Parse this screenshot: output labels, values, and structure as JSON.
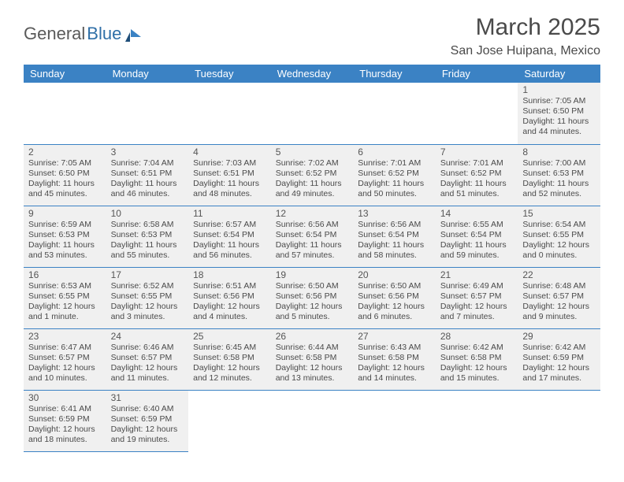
{
  "brand": {
    "name1": "General",
    "name2": "Blue"
  },
  "title": "March 2025",
  "location": "San Jose Huipana, Mexico",
  "colors": {
    "header_bg": "#3b82c4",
    "header_text": "#ffffff",
    "cell_bg": "#f0f0f0",
    "border": "#3b82c4",
    "page_bg": "#ffffff",
    "text": "#4a4a4a",
    "brand_gray": "#5a5a5a",
    "brand_blue": "#2f6fa7"
  },
  "weekdays": [
    "Sunday",
    "Monday",
    "Tuesday",
    "Wednesday",
    "Thursday",
    "Friday",
    "Saturday"
  ],
  "weeks": [
    [
      null,
      null,
      null,
      null,
      null,
      null,
      {
        "n": "1",
        "sr": "Sunrise: 7:05 AM",
        "ss": "Sunset: 6:50 PM",
        "dl": "Daylight: 11 hours and 44 minutes."
      }
    ],
    [
      {
        "n": "2",
        "sr": "Sunrise: 7:05 AM",
        "ss": "Sunset: 6:50 PM",
        "dl": "Daylight: 11 hours and 45 minutes."
      },
      {
        "n": "3",
        "sr": "Sunrise: 7:04 AM",
        "ss": "Sunset: 6:51 PM",
        "dl": "Daylight: 11 hours and 46 minutes."
      },
      {
        "n": "4",
        "sr": "Sunrise: 7:03 AM",
        "ss": "Sunset: 6:51 PM",
        "dl": "Daylight: 11 hours and 48 minutes."
      },
      {
        "n": "5",
        "sr": "Sunrise: 7:02 AM",
        "ss": "Sunset: 6:52 PM",
        "dl": "Daylight: 11 hours and 49 minutes."
      },
      {
        "n": "6",
        "sr": "Sunrise: 7:01 AM",
        "ss": "Sunset: 6:52 PM",
        "dl": "Daylight: 11 hours and 50 minutes."
      },
      {
        "n": "7",
        "sr": "Sunrise: 7:01 AM",
        "ss": "Sunset: 6:52 PM",
        "dl": "Daylight: 11 hours and 51 minutes."
      },
      {
        "n": "8",
        "sr": "Sunrise: 7:00 AM",
        "ss": "Sunset: 6:53 PM",
        "dl": "Daylight: 11 hours and 52 minutes."
      }
    ],
    [
      {
        "n": "9",
        "sr": "Sunrise: 6:59 AM",
        "ss": "Sunset: 6:53 PM",
        "dl": "Daylight: 11 hours and 53 minutes."
      },
      {
        "n": "10",
        "sr": "Sunrise: 6:58 AM",
        "ss": "Sunset: 6:53 PM",
        "dl": "Daylight: 11 hours and 55 minutes."
      },
      {
        "n": "11",
        "sr": "Sunrise: 6:57 AM",
        "ss": "Sunset: 6:54 PM",
        "dl": "Daylight: 11 hours and 56 minutes."
      },
      {
        "n": "12",
        "sr": "Sunrise: 6:56 AM",
        "ss": "Sunset: 6:54 PM",
        "dl": "Daylight: 11 hours and 57 minutes."
      },
      {
        "n": "13",
        "sr": "Sunrise: 6:56 AM",
        "ss": "Sunset: 6:54 PM",
        "dl": "Daylight: 11 hours and 58 minutes."
      },
      {
        "n": "14",
        "sr": "Sunrise: 6:55 AM",
        "ss": "Sunset: 6:54 PM",
        "dl": "Daylight: 11 hours and 59 minutes."
      },
      {
        "n": "15",
        "sr": "Sunrise: 6:54 AM",
        "ss": "Sunset: 6:55 PM",
        "dl": "Daylight: 12 hours and 0 minutes."
      }
    ],
    [
      {
        "n": "16",
        "sr": "Sunrise: 6:53 AM",
        "ss": "Sunset: 6:55 PM",
        "dl": "Daylight: 12 hours and 1 minute."
      },
      {
        "n": "17",
        "sr": "Sunrise: 6:52 AM",
        "ss": "Sunset: 6:55 PM",
        "dl": "Daylight: 12 hours and 3 minutes."
      },
      {
        "n": "18",
        "sr": "Sunrise: 6:51 AM",
        "ss": "Sunset: 6:56 PM",
        "dl": "Daylight: 12 hours and 4 minutes."
      },
      {
        "n": "19",
        "sr": "Sunrise: 6:50 AM",
        "ss": "Sunset: 6:56 PM",
        "dl": "Daylight: 12 hours and 5 minutes."
      },
      {
        "n": "20",
        "sr": "Sunrise: 6:50 AM",
        "ss": "Sunset: 6:56 PM",
        "dl": "Daylight: 12 hours and 6 minutes."
      },
      {
        "n": "21",
        "sr": "Sunrise: 6:49 AM",
        "ss": "Sunset: 6:57 PM",
        "dl": "Daylight: 12 hours and 7 minutes."
      },
      {
        "n": "22",
        "sr": "Sunrise: 6:48 AM",
        "ss": "Sunset: 6:57 PM",
        "dl": "Daylight: 12 hours and 9 minutes."
      }
    ],
    [
      {
        "n": "23",
        "sr": "Sunrise: 6:47 AM",
        "ss": "Sunset: 6:57 PM",
        "dl": "Daylight: 12 hours and 10 minutes."
      },
      {
        "n": "24",
        "sr": "Sunrise: 6:46 AM",
        "ss": "Sunset: 6:57 PM",
        "dl": "Daylight: 12 hours and 11 minutes."
      },
      {
        "n": "25",
        "sr": "Sunrise: 6:45 AM",
        "ss": "Sunset: 6:58 PM",
        "dl": "Daylight: 12 hours and 12 minutes."
      },
      {
        "n": "26",
        "sr": "Sunrise: 6:44 AM",
        "ss": "Sunset: 6:58 PM",
        "dl": "Daylight: 12 hours and 13 minutes."
      },
      {
        "n": "27",
        "sr": "Sunrise: 6:43 AM",
        "ss": "Sunset: 6:58 PM",
        "dl": "Daylight: 12 hours and 14 minutes."
      },
      {
        "n": "28",
        "sr": "Sunrise: 6:42 AM",
        "ss": "Sunset: 6:58 PM",
        "dl": "Daylight: 12 hours and 15 minutes."
      },
      {
        "n": "29",
        "sr": "Sunrise: 6:42 AM",
        "ss": "Sunset: 6:59 PM",
        "dl": "Daylight: 12 hours and 17 minutes."
      }
    ],
    [
      {
        "n": "30",
        "sr": "Sunrise: 6:41 AM",
        "ss": "Sunset: 6:59 PM",
        "dl": "Daylight: 12 hours and 18 minutes."
      },
      {
        "n": "31",
        "sr": "Sunrise: 6:40 AM",
        "ss": "Sunset: 6:59 PM",
        "dl": "Daylight: 12 hours and 19 minutes."
      },
      null,
      null,
      null,
      null,
      null
    ]
  ]
}
